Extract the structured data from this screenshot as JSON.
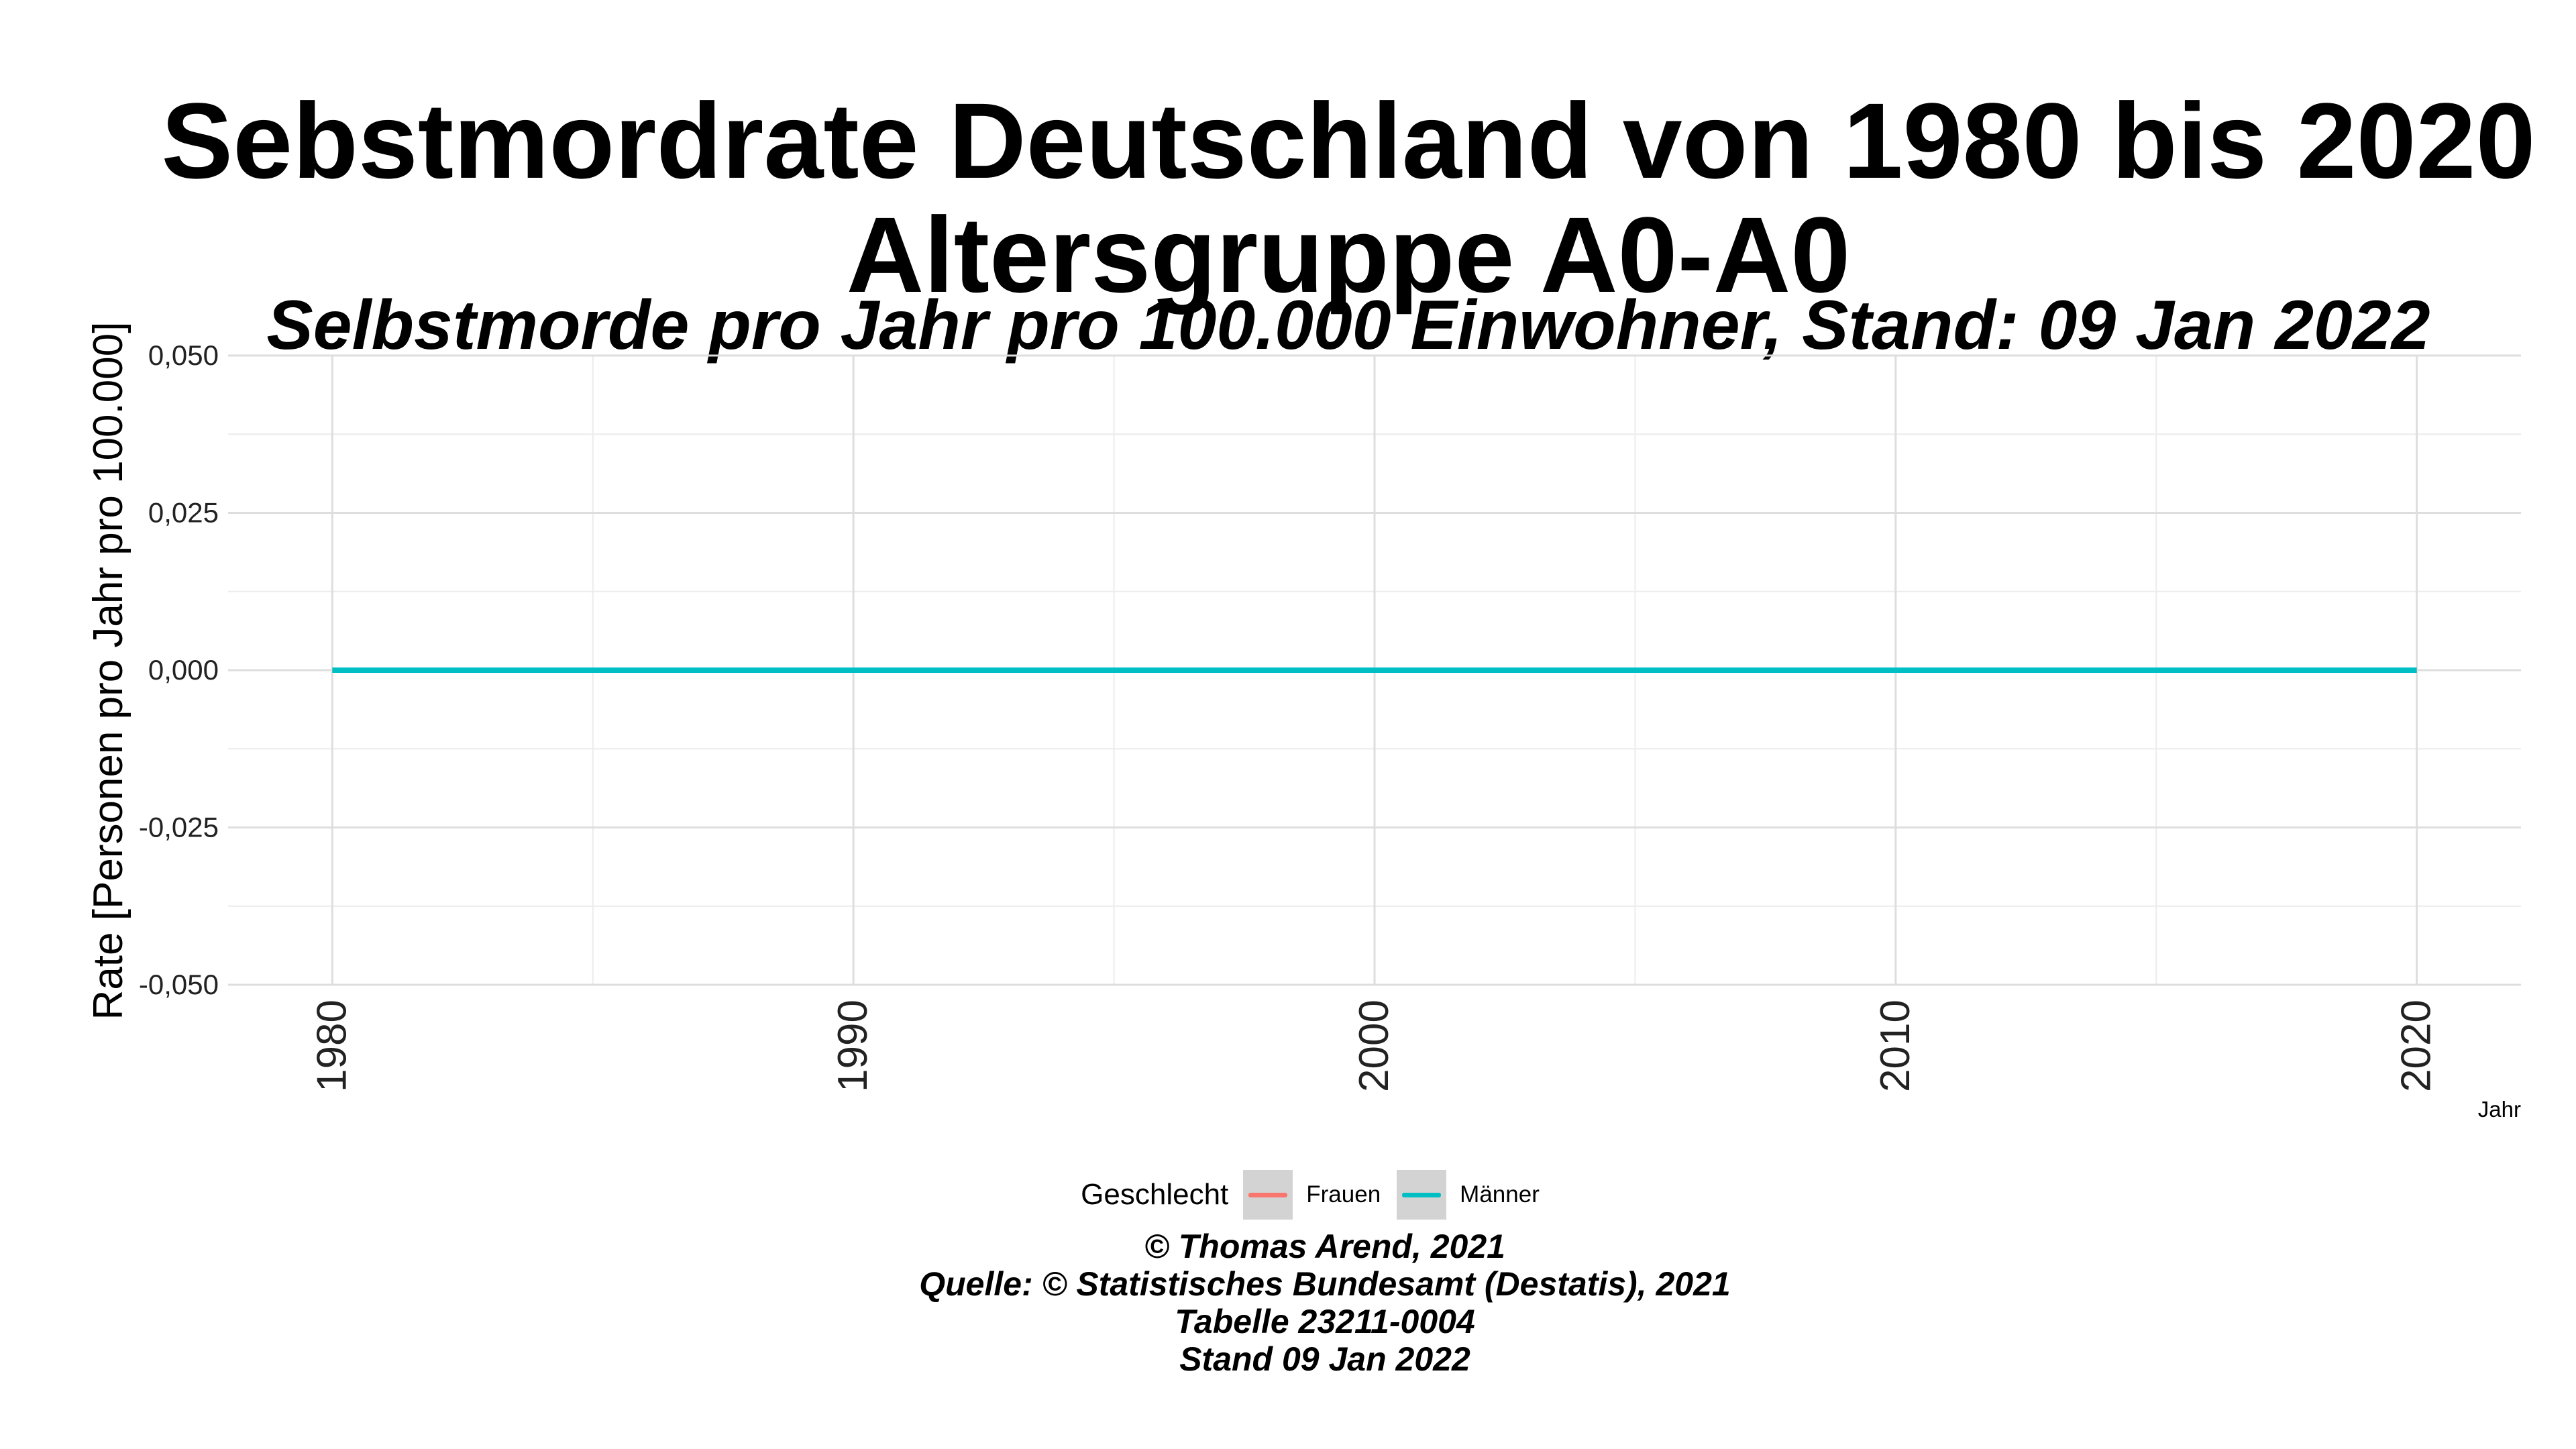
{
  "chart_data": {
    "type": "line",
    "title": "Sebstmordrate Deutschland von  1980 bis 2020",
    "title_line2": "Altersgruppe A0-A0",
    "subtitle": "Selbstmorde pro Jahr pro 100.000 Einwohner, Stand: 09 Jan 2022",
    "xlabel": "Jahr",
    "ylabel": "Rate [Personen pro Jahr pro 100.000]",
    "xlim": [
      1978,
      2022
    ],
    "ylim": [
      -0.05,
      0.05
    ],
    "x_ticks": [
      1980,
      1990,
      2000,
      2010,
      2020
    ],
    "x_minor": [
      1985,
      1995,
      2005,
      2015
    ],
    "y_ticks": [
      -0.05,
      -0.025,
      0,
      0.025,
      0.05
    ],
    "y_tick_labels": [
      "-0,050",
      "-0,025",
      "0,000",
      "0,025",
      "0,050"
    ],
    "y_minor": [
      -0.0375,
      -0.0125,
      0.0125,
      0.0375
    ],
    "grid": true,
    "legend_position": "bottom",
    "legend_title": "Geschlecht",
    "series": [
      {
        "name": "Frauen",
        "color": "#F8766D",
        "x": [
          1980,
          2020
        ],
        "y": [
          0,
          0
        ]
      },
      {
        "name": "Männer",
        "color": "#00BFC4",
        "x": [
          1980,
          2020
        ],
        "y": [
          0,
          0
        ]
      }
    ]
  },
  "caption": [
    "© Thomas Arend, 2021",
    "Quelle: © Statistisches Bundesamt (Destatis), 2021",
    "Tabelle 23211-0004",
    "Stand 09 Jan 2022"
  ]
}
